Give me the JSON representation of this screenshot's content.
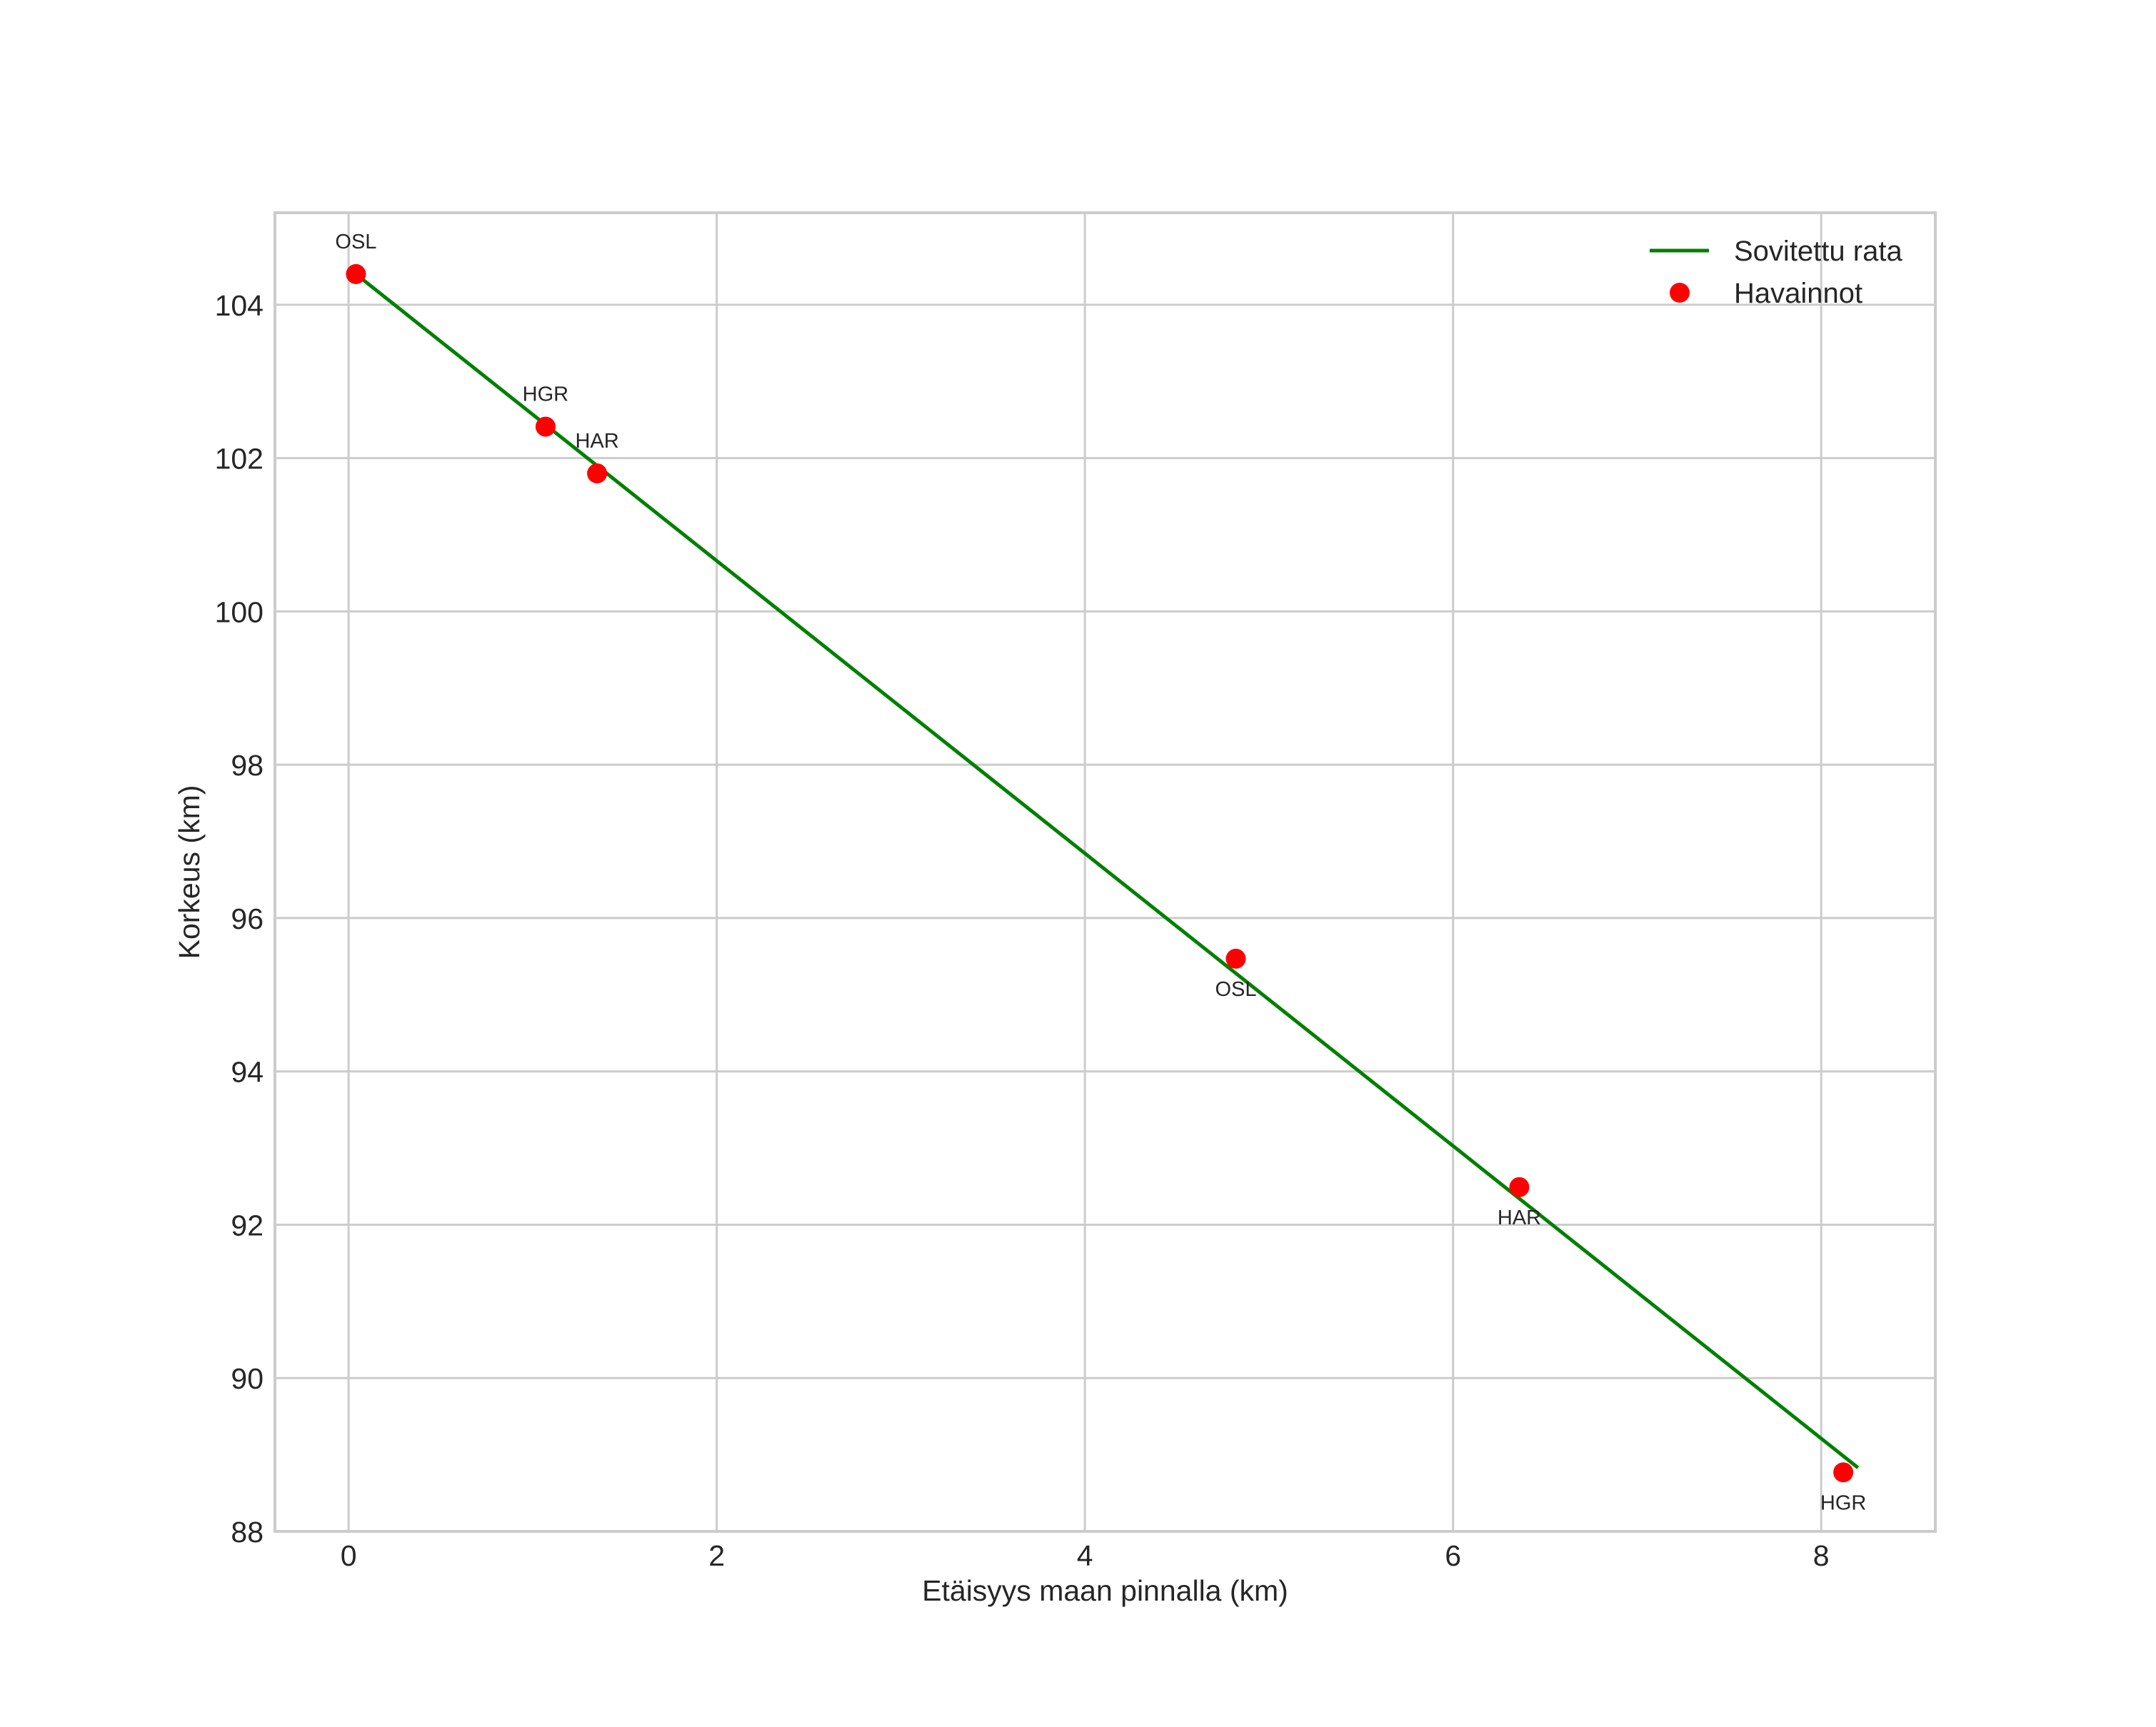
{
  "chart_data": {
    "type": "line",
    "title": "",
    "xlabel": "Etäisyys maan pinnalla (km)",
    "ylabel": "Korkeus (km)",
    "xlim": [
      -0.4,
      8.62
    ],
    "ylim": [
      88,
      105.2
    ],
    "xticks": [
      0,
      2,
      4,
      6,
      8
    ],
    "yticks": [
      88,
      90,
      92,
      94,
      96,
      98,
      100,
      102,
      104
    ],
    "grid": true,
    "legend_position": "upper right",
    "series": [
      {
        "name": "Sovitettu rata",
        "type": "line",
        "color": "#008000",
        "x": [
          0.04,
          8.2
        ],
        "y": [
          104.4,
          88.83
        ]
      },
      {
        "name": "Havainnot",
        "type": "scatter",
        "color": "#ff0000",
        "points": [
          {
            "x": 0.04,
            "y": 104.4,
            "label": "OSL",
            "label_pos": "above"
          },
          {
            "x": 1.07,
            "y": 102.41,
            "label": "HGR",
            "label_pos": "above"
          },
          {
            "x": 1.35,
            "y": 101.8,
            "label": "HAR",
            "label_pos": "above"
          },
          {
            "x": 4.82,
            "y": 95.47,
            "label": "OSL",
            "label_pos": "below"
          },
          {
            "x": 6.36,
            "y": 92.49,
            "label": "HAR",
            "label_pos": "below"
          },
          {
            "x": 8.12,
            "y": 88.77,
            "label": "HGR",
            "label_pos": "below"
          }
        ]
      }
    ]
  },
  "legend": {
    "items": [
      {
        "label": "Sovitettu rata",
        "kind": "line",
        "color": "#008000"
      },
      {
        "label": "Havainnot",
        "kind": "marker",
        "color": "#ff0000"
      }
    ]
  },
  "colors": {
    "grid": "#cccccc",
    "text": "#262626",
    "line": "#008000",
    "marker": "#ff0000"
  }
}
